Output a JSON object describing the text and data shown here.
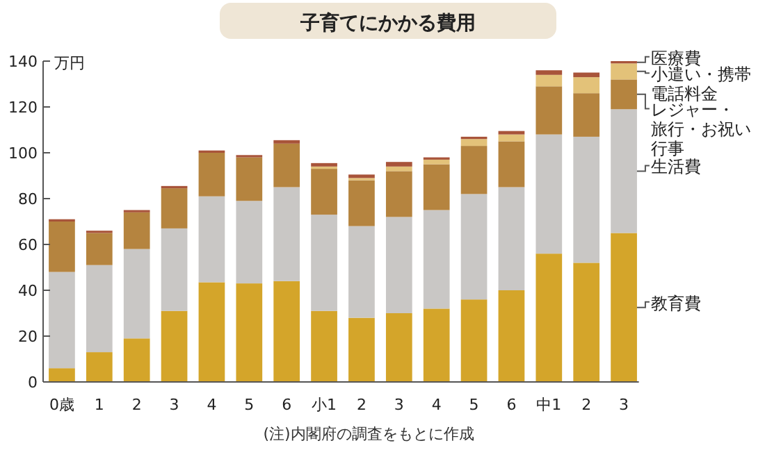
{
  "chart_data": {
    "type": "bar",
    "stacked": true,
    "title": "子育てにかかる費用",
    "ylabel": "万円",
    "annotations": [
      "(注)内閣府の調査をもとに作成"
    ],
    "categories": [
      "0歳",
      "1",
      "2",
      "3",
      "4",
      "5",
      "6",
      "小1",
      "2",
      "3",
      "4",
      "5",
      "6",
      "中1",
      "2",
      "3"
    ],
    "ylim": [
      0,
      140
    ],
    "yticks": [
      0,
      20,
      40,
      60,
      80,
      100,
      120,
      140
    ],
    "grid": false,
    "legend": "right",
    "series": [
      {
        "name": "教育費",
        "color": "#d4a52a",
        "values": [
          6,
          13,
          19,
          31,
          43.5,
          43,
          44,
          31,
          28,
          30,
          32,
          36,
          40,
          56,
          52,
          65
        ]
      },
      {
        "name": "生活費",
        "color": "#c9c7c5",
        "values": [
          42,
          38,
          39,
          36,
          37.5,
          36,
          41,
          42,
          40,
          42,
          43,
          46,
          45,
          52,
          55,
          54
        ]
      },
      {
        "name": "レジャー・旅行・お祝い行事",
        "color": "#b5843f",
        "values": [
          22,
          14,
          16,
          17.5,
          19,
          19,
          19,
          20,
          20,
          20,
          20,
          21,
          20,
          21,
          19,
          13
        ]
      },
      {
        "name": "小遣い・携帯電話料金",
        "color": "#e3c279",
        "values": [
          0,
          0,
          0,
          0,
          0,
          0,
          0,
          1,
          1,
          2,
          2,
          3,
          3,
          5,
          7,
          7
        ]
      },
      {
        "name": "医療費",
        "color": "#a8543a",
        "values": [
          1,
          1,
          1,
          1,
          1,
          1,
          1.5,
          1.5,
          1.5,
          2,
          1,
          1,
          1.5,
          2,
          2,
          1
        ]
      }
    ]
  }
}
